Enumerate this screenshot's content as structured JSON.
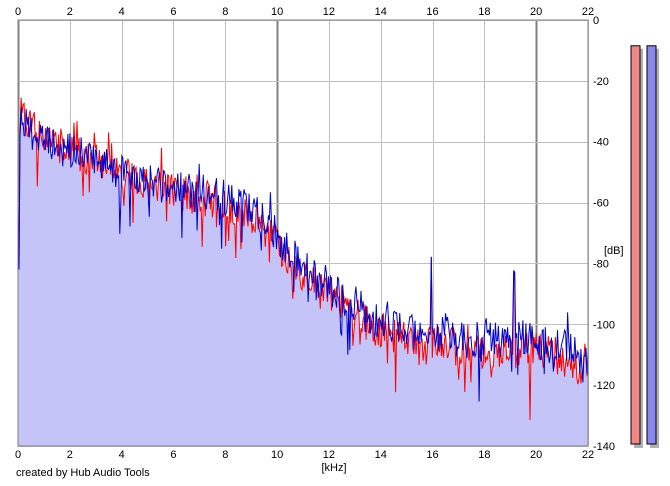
{
  "credit": "created by Hub Audio Tools",
  "chart_data": {
    "type": "area",
    "xlabel": "[kHz]",
    "ylabel": "[dB]",
    "xlim": [
      0,
      22
    ],
    "ylim": [
      -140,
      0
    ],
    "x_ticks": [
      "0",
      "2",
      "4",
      "6",
      "8",
      "10",
      "12",
      "14",
      "16",
      "18",
      "20",
      "22"
    ],
    "y_ticks": [
      "0",
      "-20",
      "-40",
      "-60",
      "-80",
      "-100",
      "-120",
      "-140"
    ],
    "grid": true,
    "colors": {
      "left": "#ff0000",
      "right": "#0000cc",
      "fill": "#c4c4f8",
      "meter_left": "#f08888",
      "meter_right": "#8888ee"
    },
    "series": [
      {
        "channel": "left",
        "x": [
          0.2,
          0.5,
          1,
          1.5,
          2,
          3,
          4,
          5,
          6,
          7,
          8,
          8.5,
          9,
          9.5,
          10,
          10.5,
          11,
          12,
          13,
          14,
          15,
          16,
          16.5,
          17,
          18,
          19,
          19.5,
          20,
          20.5,
          21,
          21.5,
          22
        ],
        "values": [
          -30,
          -34,
          -38,
          -40,
          -41,
          -45,
          -50,
          -53,
          -55,
          -57,
          -59,
          -61,
          -63,
          -66,
          -72,
          -77,
          -82,
          -88,
          -96,
          -101,
          -104,
          -106,
          -104,
          -107,
          -108,
          -108,
          -107,
          -107,
          -108,
          -110,
          -112,
          -116
        ]
      },
      {
        "channel": "right",
        "x": [
          0.2,
          0.5,
          1,
          1.5,
          2,
          3,
          4,
          5,
          6,
          7,
          8,
          8.5,
          9,
          9.5,
          10,
          10.5,
          11,
          12,
          13,
          14,
          15,
          16,
          16.5,
          17,
          18,
          19,
          19.5,
          20,
          20.5,
          21,
          21.5,
          22
        ],
        "values": [
          -32,
          -36,
          -39,
          -41,
          -42,
          -45,
          -49,
          -52,
          -54,
          -55,
          -57,
          -58,
          -61,
          -64,
          -70,
          -75,
          -80,
          -86,
          -94,
          -99,
          -101,
          -103,
          -101,
          -104,
          -104,
          -104,
          -103,
          -105,
          -106,
          -106,
          -108,
          -112
        ]
      }
    ],
    "peaks": [
      {
        "x": 15.95,
        "value": -78
      },
      {
        "x": 19.15,
        "value": -83
      }
    ],
    "meters": {
      "left": -2,
      "right": -2
    }
  }
}
